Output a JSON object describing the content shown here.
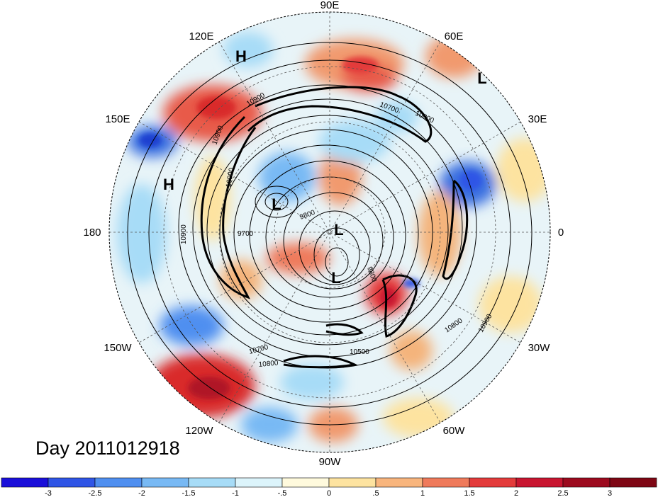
{
  "title": "Day 2011012918",
  "projection": "polar-stereographic-north",
  "longitude_labels": {
    "top": "90E",
    "upper_left": "120E",
    "upper_right": "60E",
    "left_upper": "150E",
    "right_upper": "30E",
    "left": "180",
    "right": "0",
    "left_lower": "150W",
    "right_lower": "30W",
    "lower_left": "120W",
    "lower_right": "60W",
    "bottom": "90W"
  },
  "pressure_centers": {
    "h1": "H",
    "h2": "H",
    "l1": "L",
    "l2": "L",
    "l3": "L",
    "l4": "L"
  },
  "contour_labels": {
    "c1": "10900",
    "c2": "10900",
    "c3": "10900",
    "c4": "10900",
    "c5": "10700",
    "c6": "10800",
    "c7": "10800",
    "c8": "9700",
    "c9": "9800",
    "c10": "9800",
    "c11": "10500",
    "c12": "10700",
    "c13": "10800",
    "c14": "10900"
  },
  "colors": {
    "neg3": "#1a0fd9",
    "neg25": "#2f55e6",
    "neg2": "#4f8ff0",
    "neg15": "#78b9f4",
    "neg1": "#a7dcf7",
    "neg05": "#dcf4fb",
    "pos0": "#fffadd",
    "pos05": "#fde3a0",
    "pos1": "#f8b57d",
    "pos15": "#ef7a5b",
    "pos2": "#e33b3b",
    "pos25": "#c81530",
    "pos3": "#9c0a1e"
  },
  "colorbar": {
    "ticks": [
      "-3",
      "-2.5",
      "-2",
      "-1.5",
      "-1",
      "-.5",
      "0",
      ".5",
      "1",
      "1.5",
      "2",
      "2.5",
      "3"
    ],
    "colors": [
      "#1a0fd9",
      "#2f55e6",
      "#4f8ff0",
      "#78b9f4",
      "#a7dcf7",
      "#dcf4fb",
      "#fffadd",
      "#fde3a0",
      "#f8b57d",
      "#ef7a5b",
      "#e33b3b",
      "#c81530",
      "#9c0a1e",
      "#7e0614"
    ]
  }
}
